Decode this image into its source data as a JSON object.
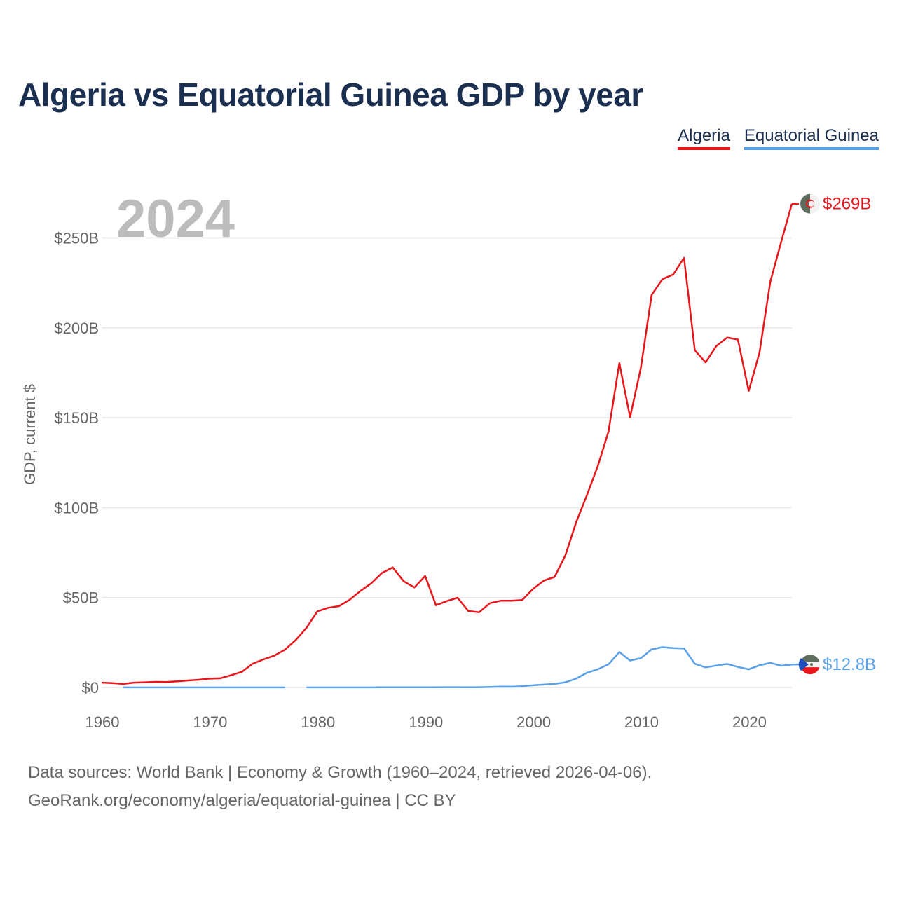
{
  "title": "Algeria vs Equatorial Guinea GDP by year",
  "legend": [
    {
      "name": "Algeria",
      "color": "#e8151b"
    },
    {
      "name": "Equatorial Guinea",
      "color": "#5aa1e8"
    }
  ],
  "chart_data": {
    "type": "line",
    "ylabel": "GDP, current $",
    "ylim": [
      0,
      269
    ],
    "xlim": [
      1960,
      2024
    ],
    "year_label": "2024",
    "x_ticks": [
      1960,
      1970,
      1980,
      1990,
      2000,
      2010,
      2020
    ],
    "x_tick_labels": [
      "1960",
      "1970",
      "1980",
      "1990",
      "2000",
      "2010",
      "2020"
    ],
    "y_ticks": [
      0,
      50,
      100,
      150,
      200,
      250
    ],
    "y_tick_labels": [
      "$0",
      "$50B",
      "$100B",
      "$150B",
      "$200B",
      "$250B"
    ],
    "series": [
      {
        "name": "Algeria",
        "color": "#e8151b",
        "end_label": "$269B",
        "points": [
          [
            1960,
            2.7
          ],
          [
            1961,
            2.4
          ],
          [
            1962,
            2.0
          ],
          [
            1963,
            2.7
          ],
          [
            1964,
            2.9
          ],
          [
            1965,
            3.1
          ],
          [
            1966,
            3.0
          ],
          [
            1967,
            3.4
          ],
          [
            1968,
            3.9
          ],
          [
            1969,
            4.3
          ],
          [
            1970,
            4.9
          ],
          [
            1971,
            5.1
          ],
          [
            1972,
            6.8
          ],
          [
            1973,
            8.7
          ],
          [
            1974,
            13.2
          ],
          [
            1975,
            15.6
          ],
          [
            1976,
            17.7
          ],
          [
            1977,
            21.0
          ],
          [
            1978,
            26.4
          ],
          [
            1979,
            33.2
          ],
          [
            1980,
            42.3
          ],
          [
            1981,
            44.3
          ],
          [
            1982,
            45.2
          ],
          [
            1983,
            48.8
          ],
          [
            1984,
            53.7
          ],
          [
            1985,
            57.9
          ],
          [
            1986,
            63.7
          ],
          [
            1987,
            66.7
          ],
          [
            1988,
            59.1
          ],
          [
            1989,
            55.6
          ],
          [
            1990,
            62.0
          ],
          [
            1991,
            45.7
          ],
          [
            1992,
            48.0
          ],
          [
            1993,
            49.9
          ],
          [
            1994,
            42.5
          ],
          [
            1995,
            41.8
          ],
          [
            1996,
            46.9
          ],
          [
            1997,
            48.2
          ],
          [
            1998,
            48.2
          ],
          [
            1999,
            48.6
          ],
          [
            2000,
            54.8
          ],
          [
            2001,
            59.4
          ],
          [
            2002,
            61.5
          ],
          [
            2003,
            73.5
          ],
          [
            2004,
            91.9
          ],
          [
            2005,
            107.0
          ],
          [
            2006,
            123.1
          ],
          [
            2007,
            142.4
          ],
          [
            2008,
            180.4
          ],
          [
            2009,
            150.3
          ],
          [
            2010,
            177.8
          ],
          [
            2011,
            218.3
          ],
          [
            2012,
            227.1
          ],
          [
            2013,
            229.7
          ],
          [
            2014,
            238.9
          ],
          [
            2015,
            187.5
          ],
          [
            2016,
            180.8
          ],
          [
            2017,
            189.9
          ],
          [
            2018,
            194.6
          ],
          [
            2019,
            193.5
          ],
          [
            2020,
            164.9
          ],
          [
            2021,
            186.2
          ],
          [
            2022,
            225.6
          ],
          [
            2023,
            247.6
          ],
          [
            2024,
            269.0
          ]
        ]
      },
      {
        "name": "Equatorial Guinea",
        "color": "#5aa1e8",
        "end_label": "$12.8B",
        "points": [
          [
            1962,
            0.02
          ],
          [
            1963,
            0.03
          ],
          [
            1964,
            0.03
          ],
          [
            1965,
            0.03
          ],
          [
            1966,
            0.03
          ],
          [
            1967,
            0.03
          ],
          [
            1968,
            0.03
          ],
          [
            1969,
            0.03
          ],
          [
            1970,
            0.03
          ],
          [
            1971,
            0.03
          ],
          [
            1972,
            0.03
          ],
          [
            1973,
            0.03
          ],
          [
            1974,
            0.03
          ],
          [
            1975,
            0.03
          ],
          [
            1976,
            0.03
          ],
          [
            1977,
            0.03
          ],
          [
            1978,
            null
          ],
          [
            1979,
            0.03
          ],
          [
            1980,
            0.03
          ],
          [
            1981,
            0.03
          ],
          [
            1982,
            0.03
          ],
          [
            1983,
            0.03
          ],
          [
            1984,
            0.03
          ],
          [
            1985,
            0.05
          ],
          [
            1986,
            0.07
          ],
          [
            1987,
            0.08
          ],
          [
            1988,
            0.09
          ],
          [
            1989,
            0.08
          ],
          [
            1990,
            0.13
          ],
          [
            1991,
            0.13
          ],
          [
            1992,
            0.15
          ],
          [
            1993,
            0.16
          ],
          [
            1994,
            0.12
          ],
          [
            1995,
            0.16
          ],
          [
            1996,
            0.28
          ],
          [
            1997,
            0.5
          ],
          [
            1998,
            0.44
          ],
          [
            1999,
            0.71
          ],
          [
            2000,
            1.2
          ],
          [
            2001,
            1.6
          ],
          [
            2002,
            2.0
          ],
          [
            2003,
            2.9
          ],
          [
            2004,
            4.9
          ],
          [
            2005,
            8.2
          ],
          [
            2006,
            10.1
          ],
          [
            2007,
            12.9
          ],
          [
            2008,
            19.7
          ],
          [
            2009,
            15.0
          ],
          [
            2010,
            16.3
          ],
          [
            2011,
            21.2
          ],
          [
            2012,
            22.4
          ],
          [
            2013,
            21.9
          ],
          [
            2014,
            21.7
          ],
          [
            2015,
            13.2
          ],
          [
            2016,
            11.2
          ],
          [
            2017,
            12.2
          ],
          [
            2018,
            13.1
          ],
          [
            2019,
            11.4
          ],
          [
            2020,
            10.1
          ],
          [
            2021,
            12.3
          ],
          [
            2022,
            13.7
          ],
          [
            2023,
            12.1
          ],
          [
            2024,
            12.8
          ]
        ]
      }
    ]
  },
  "footer": {
    "line1": "Data sources: World Bank | Economy & Growth (1960–2024, retrieved 2026-04-06).",
    "line2": "GeoRank.org/economy/algeria/equatorial-guinea | CC BY"
  }
}
